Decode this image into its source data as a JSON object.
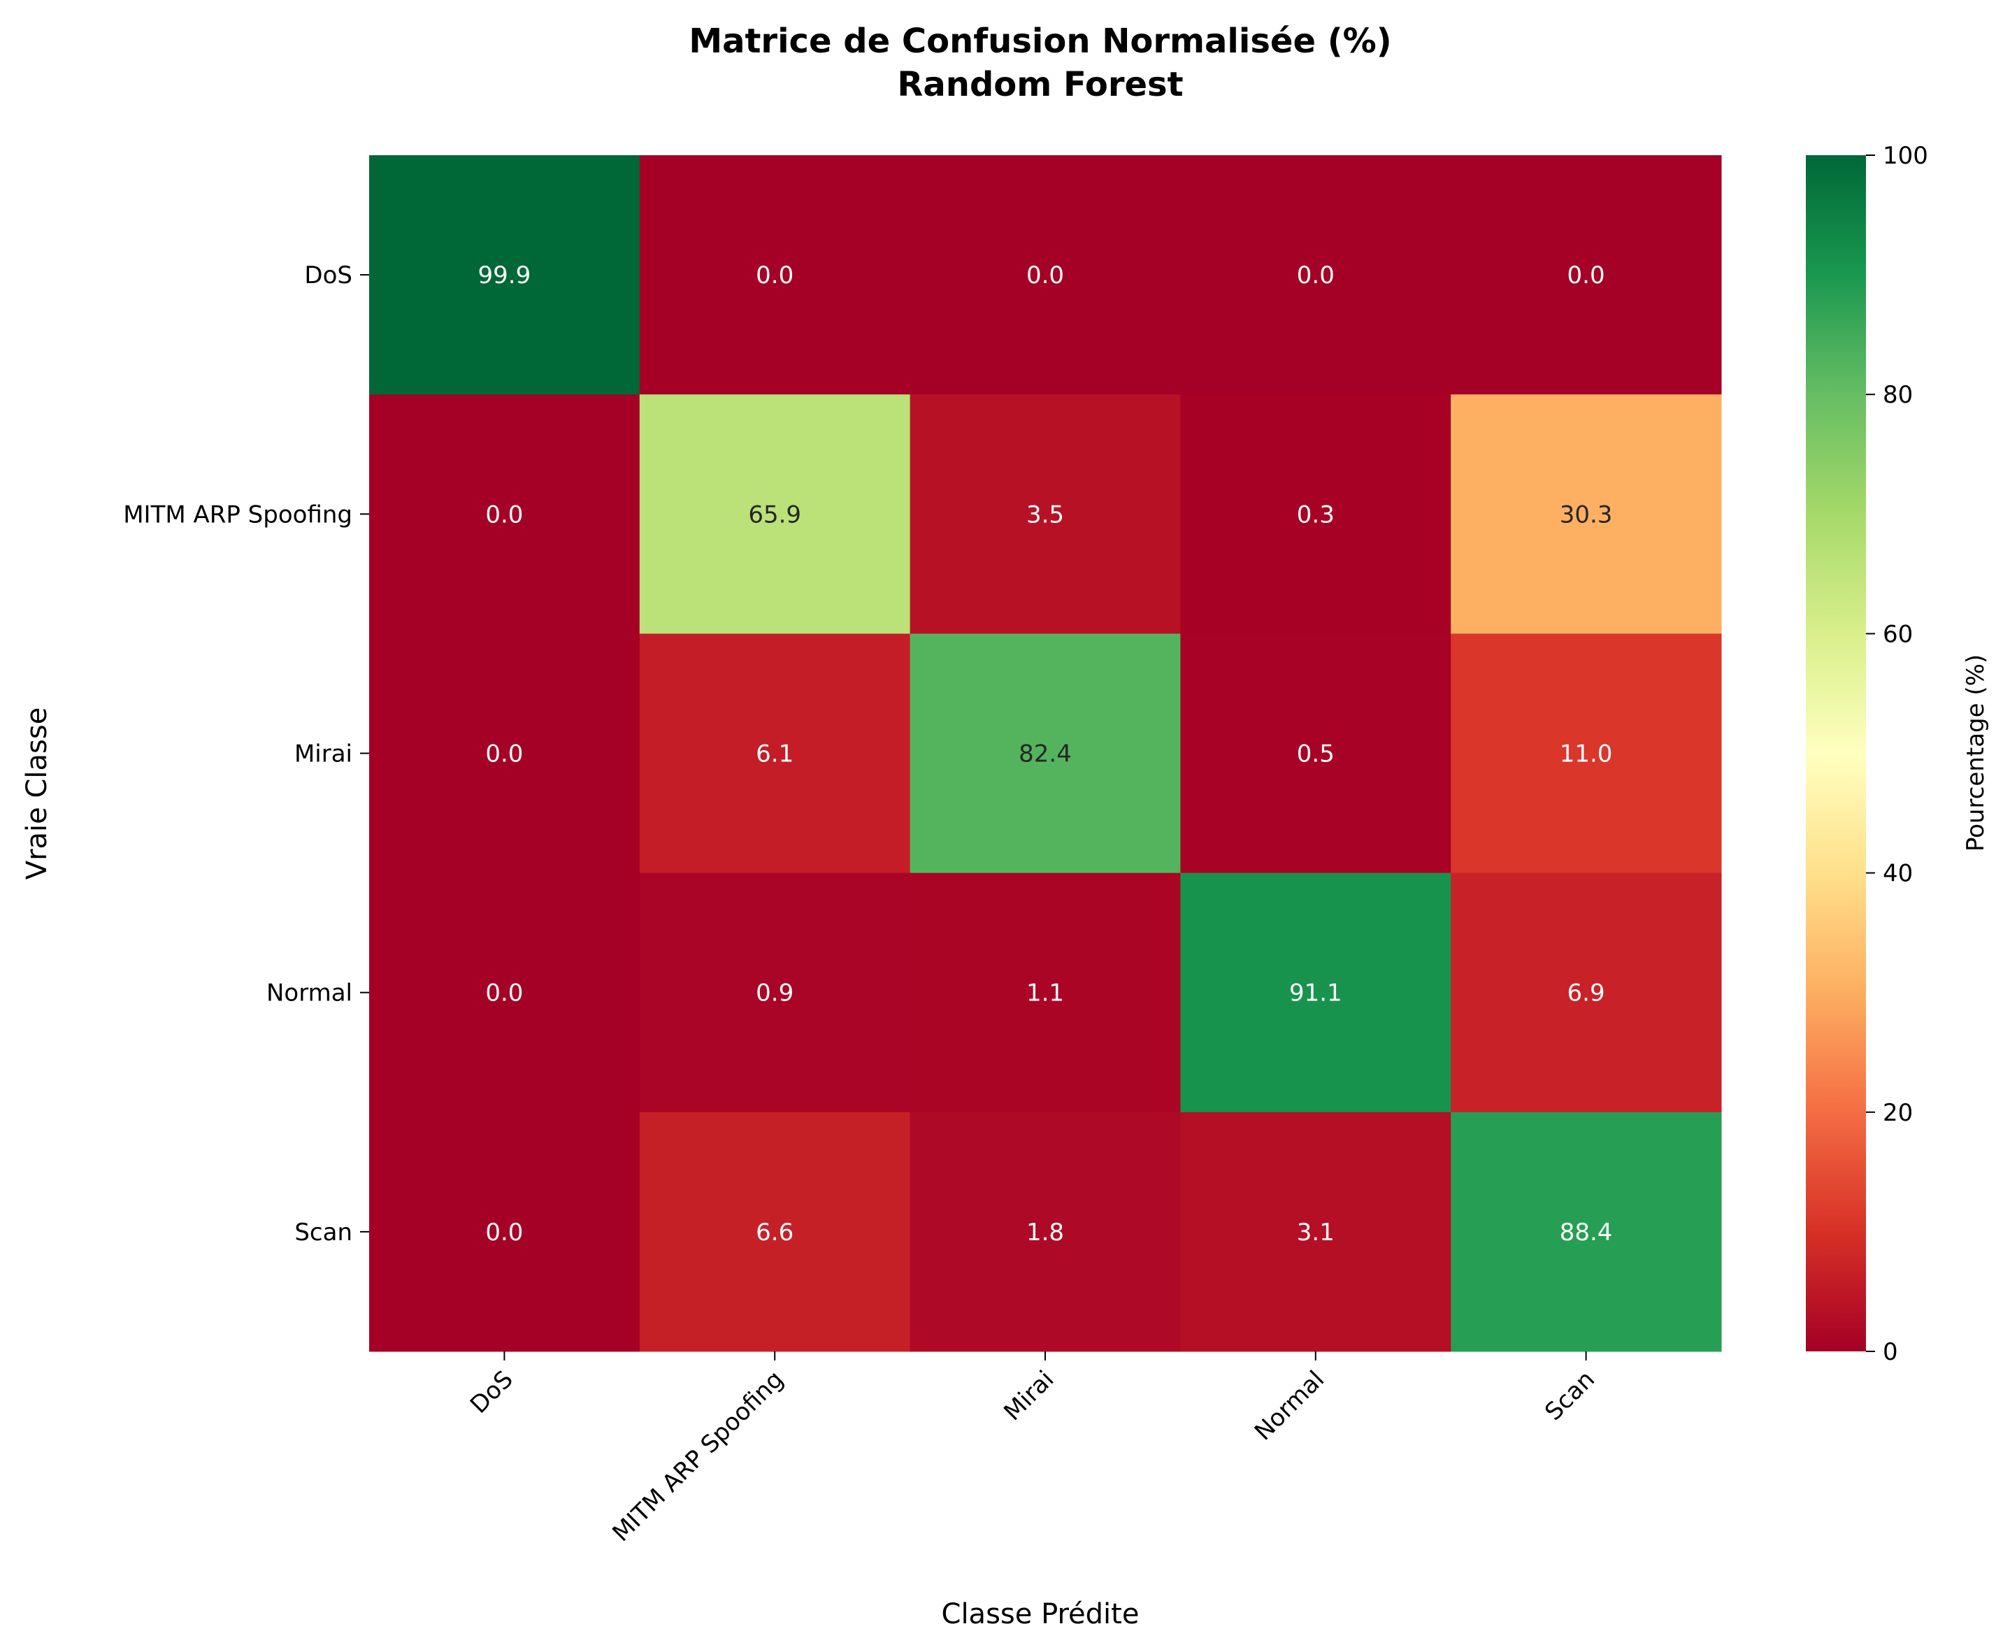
{
  "chart_data": {
    "type": "heatmap",
    "title": [
      "Matrice de Confusion Normalisée (%)",
      "Random Forest"
    ],
    "xlabel": "Classe Prédite",
    "ylabel": "Vraie Classe",
    "x_categories": [
      "DoS",
      "MITM ARP Spoofing",
      "Mirai",
      "Normal",
      "Scan"
    ],
    "y_categories": [
      "DoS",
      "MITM ARP Spoofing",
      "Mirai",
      "Normal",
      "Scan"
    ],
    "values": [
      [
        99.9,
        0.0,
        0.0,
        0.0,
        0.0
      ],
      [
        0.0,
        65.9,
        3.5,
        0.3,
        30.3
      ],
      [
        0.0,
        6.1,
        82.4,
        0.5,
        11.0
      ],
      [
        0.0,
        0.9,
        1.1,
        91.1,
        6.9
      ],
      [
        0.0,
        6.6,
        1.8,
        3.1,
        88.4
      ]
    ],
    "value_format": "0.1f",
    "colormap": "RdYlGn",
    "color_range": [
      0,
      100
    ],
    "colorbar": {
      "label": "Pourcentage (%)",
      "ticks": [
        0,
        20,
        40,
        60,
        80,
        100
      ]
    }
  }
}
